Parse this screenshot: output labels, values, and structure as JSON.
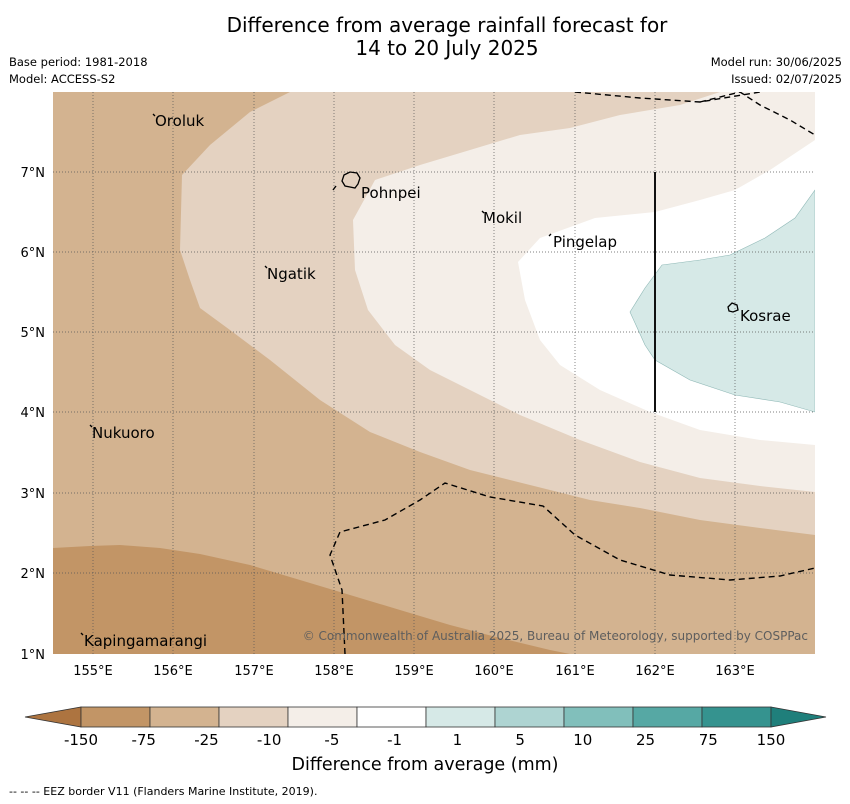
{
  "title": {
    "line1": "Difference from average rainfall forecast for",
    "line2": "14 to 20 July 2025"
  },
  "meta": {
    "base_period": "Base period: 1981-2018",
    "model": "Model: ACCESS-S2",
    "model_run": "Model run: 30/06/2025",
    "issued": "Issued: 02/07/2025"
  },
  "axes": {
    "lon_labels": [
      "155°E",
      "156°E",
      "157°E",
      "158°E",
      "159°E",
      "160°E",
      "161°E",
      "162°E",
      "163°E"
    ],
    "lat_labels": [
      "7°N",
      "6°N",
      "5°N",
      "4°N",
      "3°N",
      "2°N",
      "1°N"
    ]
  },
  "places": [
    "Oroluk",
    "Pohnpei",
    "Mokil",
    "Pingelap",
    "Ngatik",
    "Kosrae",
    "Nukuoro",
    "Kapingamarangi"
  ],
  "copyright": "© Commonwealth of Australia 2025, Bureau of Meteorology, supported by COSPPac",
  "colorbar": {
    "ticks": [
      "-150",
      "-75",
      "-25",
      "-10",
      "-5",
      "-1",
      "1",
      "5",
      "10",
      "25",
      "75",
      "150"
    ],
    "colors": [
      "#ad7440",
      "#c29566",
      "#d3b390",
      "#e4d2c1",
      "#f4eee8",
      "#ffffff",
      "#d6e9e7",
      "#aed4d2",
      "#81bfbb",
      "#56a8a4",
      "#35938f",
      "#1f7f7b"
    ],
    "label": "Difference from average (mm)"
  },
  "footnote": "--  --  -- EEZ border V11 (Flanders Marine Institute, 2019)."
}
